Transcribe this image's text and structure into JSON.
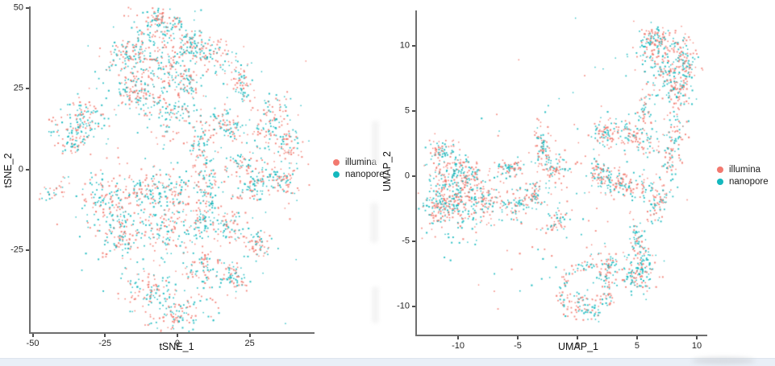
{
  "page": {
    "background": "#ffffff",
    "bottom_bar_color": "#e9eff7"
  },
  "colors": {
    "illumina": "#F2796F",
    "nanopore": "#14B8BE",
    "axis_line": "#6e6e6e",
    "tick": "#4d4d4d",
    "tick_text": "#262626",
    "label_text": "#111111"
  },
  "chart_data": [
    {
      "type": "scatter",
      "title": "",
      "xlabel": "tSNE_1",
      "ylabel": "tSNE_2",
      "xlim": [
        -50.7,
        47.4
      ],
      "ylim": [
        -50.6,
        50.6
      ],
      "xticks": [
        -50,
        -25,
        0,
        25
      ],
      "yticks": [
        50,
        25,
        0,
        -25
      ],
      "grid": false,
      "legend_position": "right",
      "series": [
        {
          "name": "illumina",
          "color": "#F2796F"
        },
        {
          "name": "nanopore",
          "color": "#14B8BE"
        }
      ],
      "cluster_format": "[center_x, center_y, n_points, sigma_x_or_ring_radius, sigma_y_or_ring_width, rotation_deg, optional 'ring']",
      "clusters": [
        [
          -5.4,
          45,
          140,
          5,
          3.5,
          0
        ],
        [
          10.4,
          36.1,
          90,
          5,
          2.5,
          -25
        ],
        [
          -16.3,
          36.1,
          110,
          4.5,
          3.5,
          20
        ],
        [
          -4.6,
          32.6,
          130,
          5,
          4,
          0
        ],
        [
          -15,
          25.5,
          50,
          3,
          2.5,
          0
        ],
        [
          -32.7,
          15.4,
          110,
          4.5,
          3.5,
          15
        ],
        [
          -36,
          8.3,
          45,
          2.5,
          2,
          0
        ],
        [
          -13.1,
          23,
          55,
          3.5,
          2,
          0
        ],
        [
          -0.5,
          17.4,
          90,
          4,
          3.5,
          0
        ],
        [
          22.6,
          26.5,
          55,
          2,
          3,
          0
        ],
        [
          17.2,
          13.6,
          75,
          3.5,
          2.5,
          -40
        ],
        [
          32.2,
          15.4,
          90,
          3,
          4.5,
          -20
        ],
        [
          38.1,
          8.3,
          50,
          2,
          3,
          0
        ],
        [
          -43.6,
          -7.3,
          25,
          3,
          1,
          35
        ],
        [
          -23.7,
          -9.1,
          100,
          4.5,
          3.5,
          0
        ],
        [
          -19.1,
          -20,
          130,
          5.5,
          4.5,
          0
        ],
        [
          -11.4,
          -6.8,
          60,
          3.5,
          3,
          0
        ],
        [
          -2.7,
          -7.3,
          85,
          4,
          3.5,
          0
        ],
        [
          -4.1,
          -19.2,
          80,
          4,
          3.5,
          0
        ],
        [
          -8.2,
          -38.4,
          85,
          4,
          3.5,
          0
        ],
        [
          0.5,
          -44.7,
          100,
          5.5,
          3,
          10
        ],
        [
          10.4,
          -7.3,
          90,
          2.2,
          5.5,
          0
        ],
        [
          8.2,
          -17.5,
          45,
          2.2,
          3,
          0
        ],
        [
          18.5,
          -17.9,
          60,
          3,
          2.5,
          0
        ],
        [
          27.2,
          -4.3,
          90,
          3.5,
          3,
          0
        ],
        [
          36.8,
          -2.8,
          60,
          2.5,
          2.5,
          0
        ],
        [
          28.1,
          -23.7,
          55,
          2.2,
          2.2,
          0
        ],
        [
          19.1,
          -33.8,
          60,
          2.5,
          2,
          0
        ],
        [
          8.2,
          -30.1,
          70,
          3,
          3,
          0
        ],
        [
          5.4,
          38.9,
          40,
          2,
          1.8,
          0
        ],
        [
          3.3,
          26.8,
          50,
          2.5,
          2.5,
          0
        ],
        [
          8.3,
          7.8,
          50,
          2.2,
          3.5,
          0
        ],
        [
          22,
          2,
          40,
          2.5,
          2,
          0
        ],
        [
          0,
          -2,
          150,
          21,
          20,
          0
        ]
      ]
    },
    {
      "type": "scatter",
      "title": "",
      "xlabel": "UMAP_1",
      "ylabel": "UMAP_2",
      "xlim": [
        -13.45,
        10.88
      ],
      "ylim": [
        -12.16,
        12.72
      ],
      "xticks": [
        -10,
        -5,
        0,
        5,
        10
      ],
      "yticks": [
        10,
        5,
        0,
        -5,
        -10
      ],
      "grid": false,
      "legend_position": "right",
      "series": [
        {
          "name": "illumina",
          "color": "#F2796F"
        },
        {
          "name": "nanopore",
          "color": "#14B8BE"
        }
      ],
      "cluster_format": "[center_x, center_y, n_points, sigma_x_or_ring_radius, sigma_y_or_ring_width, rotation_deg, optional 'ring']",
      "clusters": [
        [
          7.4,
          9.1,
          150,
          1.2,
          1.1,
          0
        ],
        [
          7.4,
          9.2,
          60,
          1.5,
          0.3,
          0,
          "ring"
        ],
        [
          6.4,
          10.7,
          50,
          0.6,
          0.4,
          0
        ],
        [
          9.1,
          8.0,
          60,
          0.4,
          0.9,
          0
        ],
        [
          8.2,
          6.4,
          70,
          0.7,
          0.6,
          0
        ],
        [
          5.7,
          4.9,
          40,
          0.4,
          0.6,
          0
        ],
        [
          4.7,
          3.1,
          90,
          1.0,
          0.5,
          -25
        ],
        [
          2.3,
          3.3,
          60,
          0.5,
          0.5,
          0
        ],
        [
          -11.2,
          1.8,
          70,
          0.7,
          0.5,
          -30
        ],
        [
          -3.0,
          2.4,
          55,
          0.3,
          0.9,
          0
        ],
        [
          -10.2,
          -1.6,
          280,
          1.4,
          1.3,
          0
        ],
        [
          -11.9,
          -2.5,
          70,
          0.5,
          0.8,
          0
        ],
        [
          -9.5,
          0.25,
          80,
          0.8,
          0.6,
          0
        ],
        [
          -7.8,
          -1.9,
          60,
          0.6,
          0.6,
          0
        ],
        [
          -5.5,
          0.6,
          55,
          0.6,
          0.4,
          0
        ],
        [
          -5.1,
          -2.2,
          65,
          0.8,
          0.5,
          20
        ],
        [
          -1.9,
          0.6,
          65,
          0.6,
          0.5,
          0
        ],
        [
          -3.4,
          -1.3,
          45,
          0.5,
          0.5,
          0
        ],
        [
          -1.8,
          -3.5,
          40,
          0.5,
          0.4,
          0
        ],
        [
          4.0,
          -0.6,
          130,
          1.4,
          0.5,
          -15
        ],
        [
          2.0,
          0.25,
          50,
          0.5,
          0.5,
          0
        ],
        [
          6.7,
          -2.2,
          55,
          0.4,
          0.7,
          -30
        ],
        [
          5.0,
          -4.8,
          50,
          0.25,
          0.8,
          0
        ],
        [
          0.7,
          -8.7,
          150,
          2.0,
          0.3,
          0,
          "ring"
        ],
        [
          0.5,
          -9.8,
          40,
          0.7,
          0.4,
          0
        ],
        [
          5.2,
          -7.6,
          95,
          0.8,
          0.6,
          0
        ],
        [
          5.7,
          -6.2,
          30,
          0.3,
          0.6,
          0
        ],
        [
          2.8,
          -6.9,
          40,
          0.4,
          0.5,
          0
        ],
        [
          8.4,
          3.6,
          45,
          0.4,
          0.8,
          0
        ],
        [
          7.7,
          1.2,
          40,
          0.35,
          0.7,
          0
        ],
        [
          -2.0,
          -1.5,
          120,
          5.5,
          4,
          0
        ]
      ]
    }
  ]
}
